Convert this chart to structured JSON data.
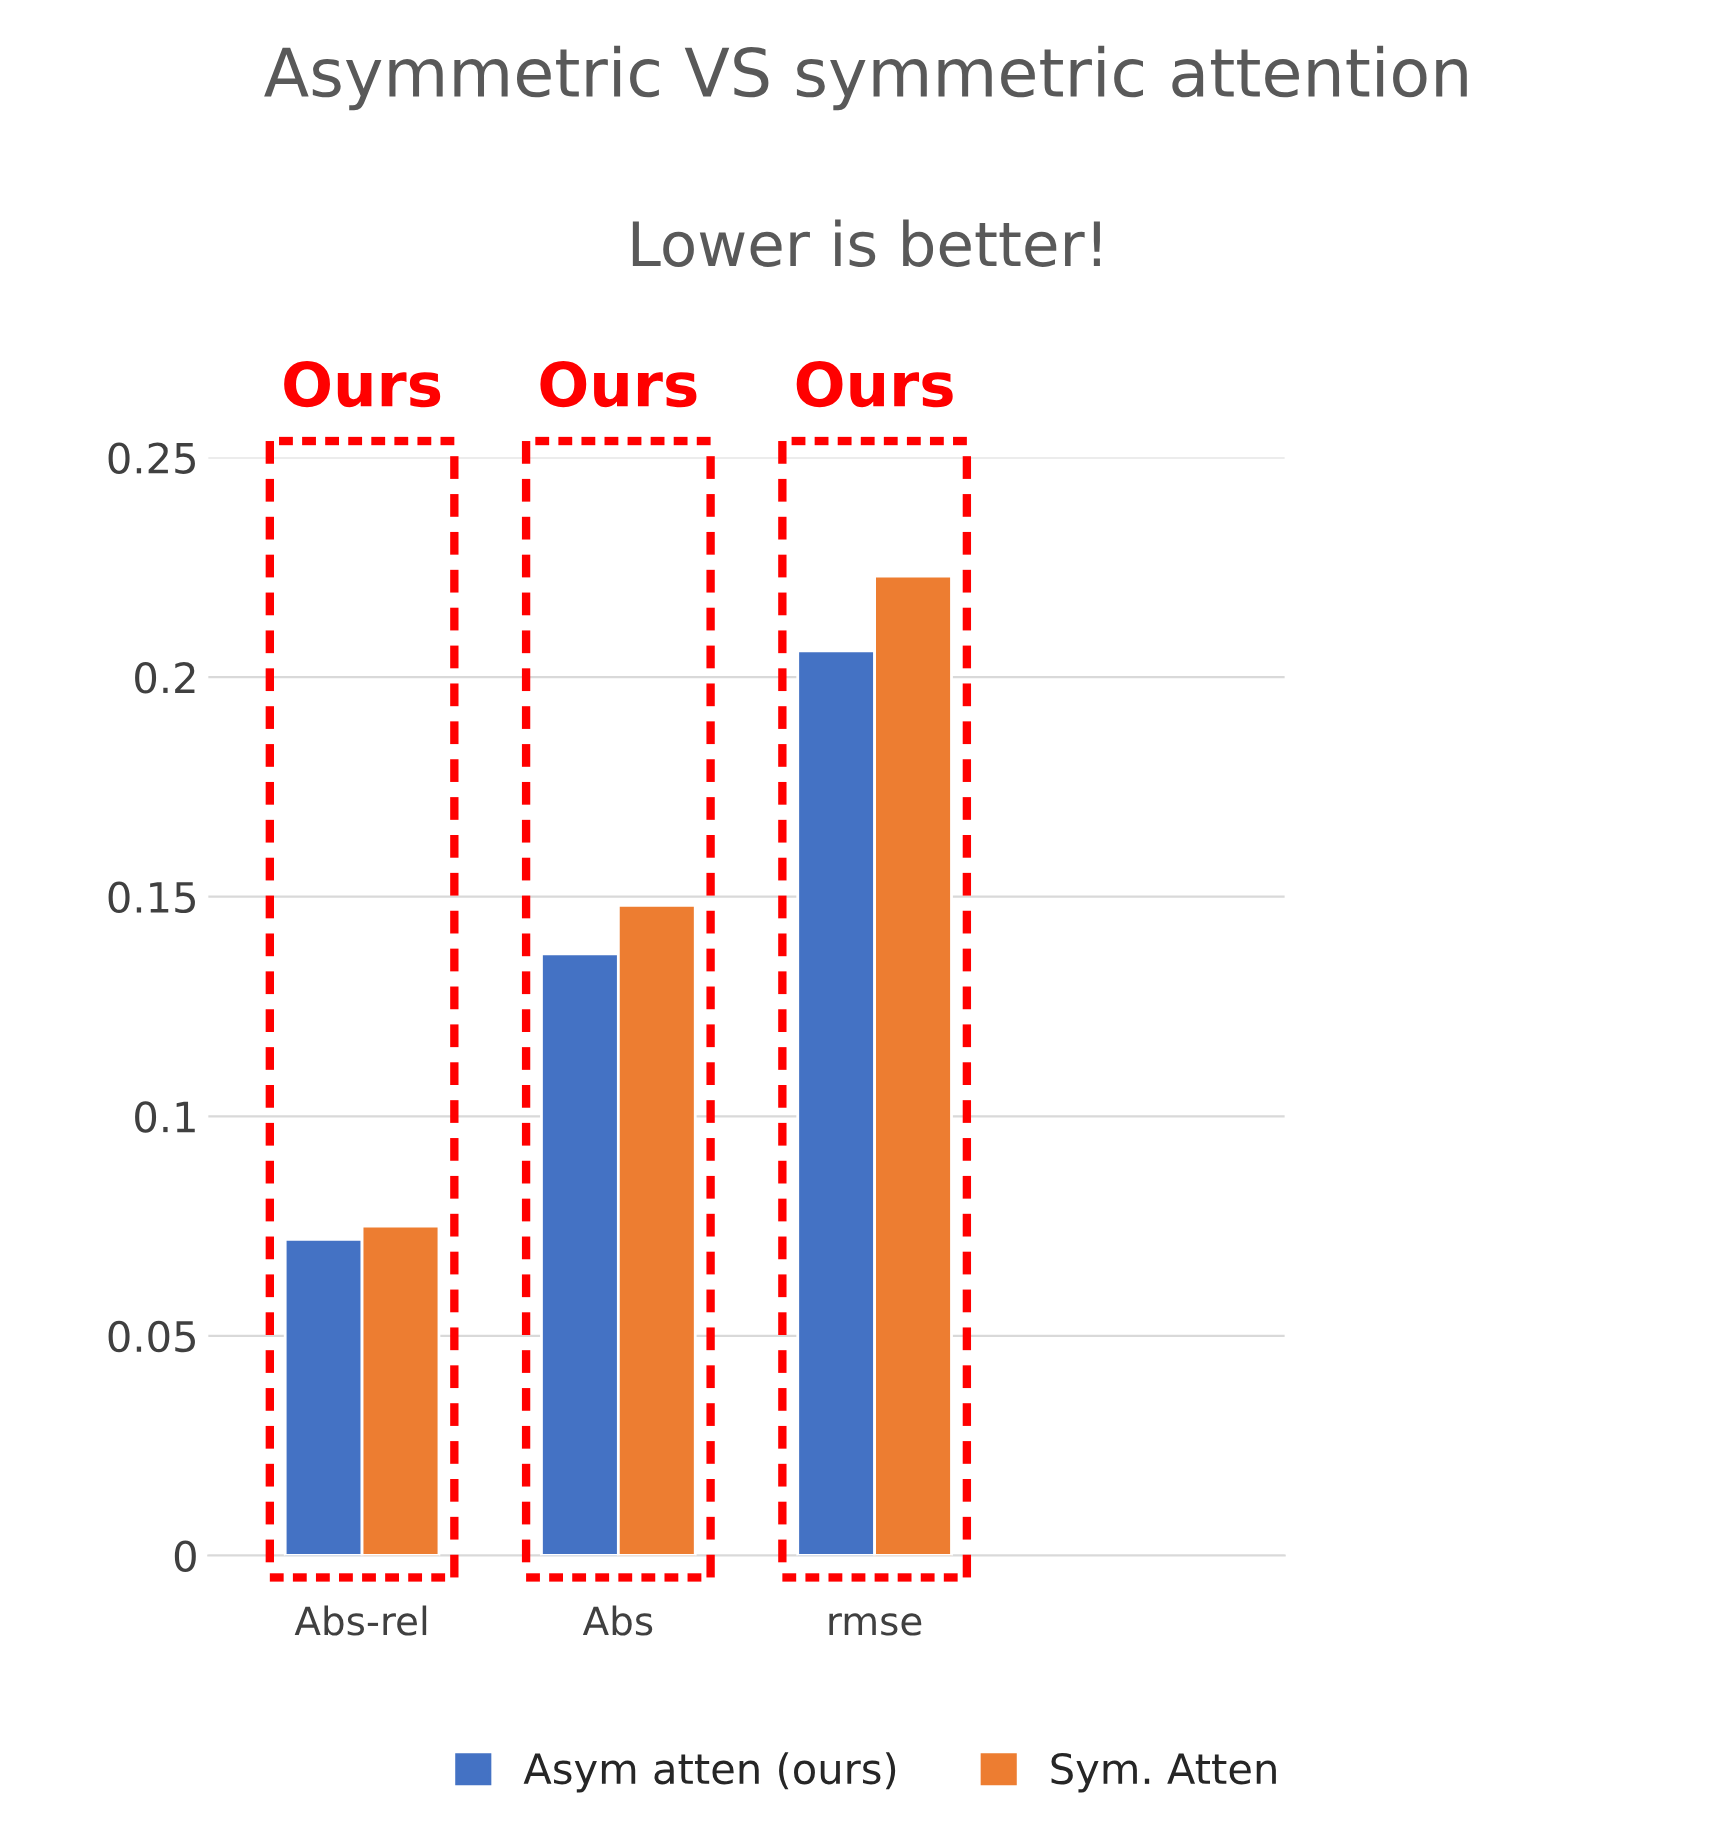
{
  "chart_data": {
    "type": "bar",
    "title": "Asymmetric VS symmetric attention",
    "subtitle": "Lower is better!",
    "categories": [
      "Abs-rel",
      "Abs",
      "rmse"
    ],
    "series": [
      {
        "name": "Asym atten (ours)",
        "color": "#4472c4",
        "values": [
          0.072,
          0.137,
          0.206
        ]
      },
      {
        "name": "Sym. Atten",
        "color": "#ed7d31",
        "values": [
          0.075,
          0.148,
          0.223
        ]
      }
    ],
    "ylim": [
      0,
      0.25
    ],
    "yticks": [
      0,
      0.05,
      0.1,
      0.15,
      0.2,
      0.25
    ],
    "grid": "y",
    "legend": "bottom",
    "annotations": [
      "Ours",
      "Ours",
      "Ours"
    ]
  }
}
